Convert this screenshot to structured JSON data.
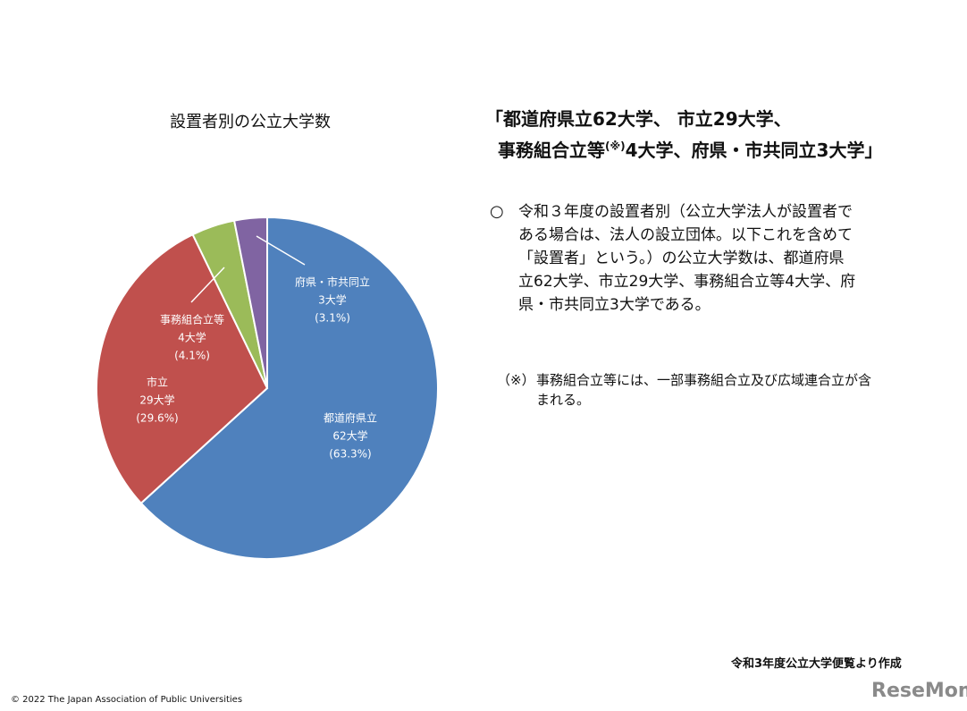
{
  "chart_data": {
    "type": "pie",
    "title": "設置者別の公立大学数",
    "categories": [
      "都道府県立",
      "市立",
      "事務組合立等",
      "府県・市共同立"
    ],
    "sublabels": [
      "62大学",
      "29大学",
      "4大学",
      "3大学"
    ],
    "values": [
      63.3,
      29.6,
      4.1,
      3.1
    ],
    "value_labels": [
      "(63.3%)",
      "(29.6%)",
      "(4.1%)",
      "(3.1%)"
    ],
    "colors": [
      "#4f81bd",
      "#c0504d",
      "#9bbb59",
      "#8064a2"
    ]
  },
  "heading": {
    "line1": "「都道府県立62大学、 市立29大学、",
    "line2a": "事務組合立等",
    "line2b": "(※)",
    "line2c": "4大学、府県・市共同立3大学」"
  },
  "body": {
    "bullet": "○",
    "lines": [
      "令和３年度の設置者別（公立大学法人が設置者で",
      "ある場合は、法人の設立団体。以下これを含めて",
      "「設置者」という。）の公立大学数は、都道府県",
      "立62大学、市立29大学、事務組合立等4大学、府",
      "県・市共同立3大学である。"
    ]
  },
  "note": {
    "mark": "（※）",
    "lines": [
      "事務組合立等には、一部事務組合立及び広域連合立が含",
      "まれる。"
    ]
  },
  "source": "令和3年度公立大学便覧より作成",
  "footer": "©  2022  The Japan Association of Public Universities",
  "watermark": "ReseMom"
}
